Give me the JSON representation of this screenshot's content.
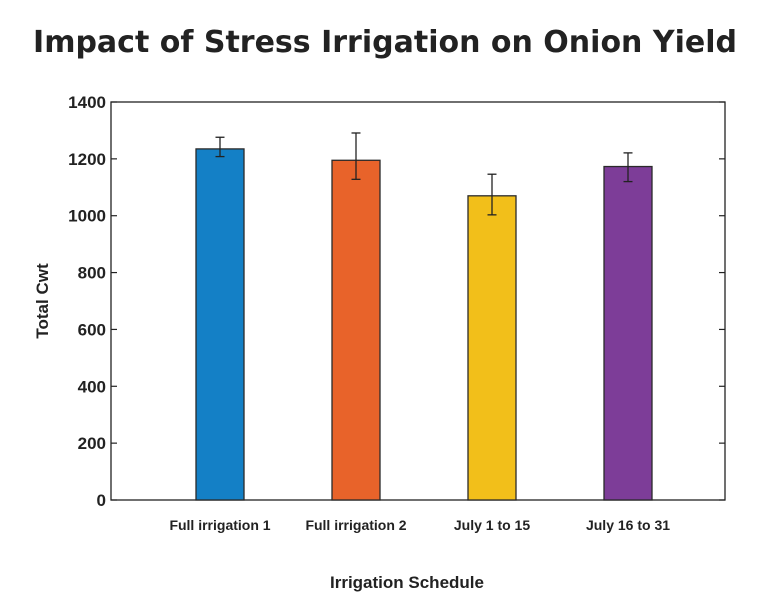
{
  "chart_data": {
    "type": "bar",
    "title": "Impact of Stress Irrigation on Onion Yield",
    "xlabel": "Irrigation Schedule",
    "ylabel": "Total Cwt",
    "categories": [
      "Full irrigation 1",
      "Full irrigation 2",
      "July 1 to 15",
      "July 16 to 31"
    ],
    "values": [
      1235,
      1195,
      1070,
      1173
    ],
    "error_low": [
      1208,
      1128,
      1003,
      1120
    ],
    "error_high": [
      1276,
      1291,
      1146,
      1221
    ],
    "colors": [
      "#1480c6",
      "#e8632a",
      "#f2bf1a",
      "#7d3d98"
    ],
    "ylim": [
      0,
      1400
    ],
    "yticks": [
      0,
      200,
      400,
      600,
      800,
      1000,
      1200,
      1400
    ],
    "grid": false,
    "legend": "none"
  }
}
